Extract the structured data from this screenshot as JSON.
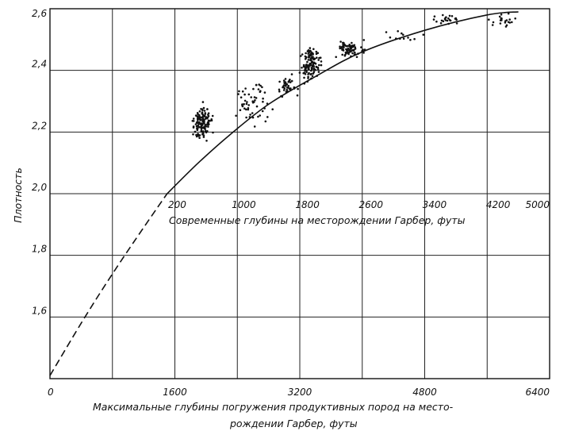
{
  "chart_data": {
    "type": "scatter",
    "ylabel": "Плотность",
    "ylim": [
      1.4,
      2.6
    ],
    "yticks": [
      1.6,
      1.8,
      2.0,
      2.2,
      2.4,
      2.6
    ],
    "ytick_labels": [
      "1,6",
      "1,8",
      "2,0",
      "2,2",
      "2,4",
      "2,6"
    ],
    "bottom_axis": {
      "label_line1": "Максимальные глубины погружения продуктивных пород на место-",
      "label_line2": "рождении Гарбер, футы",
      "range": [
        0,
        6400
      ],
      "ticks": [
        0,
        1600,
        3200,
        4800,
        6400
      ],
      "tick_labels": [
        "0",
        "1600",
        "3200",
        "4800",
        "6400"
      ]
    },
    "top_axis": {
      "label": "Современные глубины на месторождении Гарбер, футы",
      "ticks": [
        200,
        1000,
        1800,
        2600,
        3400,
        4200,
        5000
      ],
      "tick_labels": [
        "200",
        "1000",
        "1800",
        "2600",
        "3400",
        "4200",
        "5000"
      ]
    },
    "grid": true,
    "series": [
      {
        "style": "dashed",
        "x": [
          0,
          400,
          800,
          1200,
          1500
        ],
        "y": [
          1.41,
          1.58,
          1.74,
          1.89,
          2.0
        ]
      },
      {
        "style": "solid",
        "x": [
          1500,
          1900,
          2300,
          2800,
          3400,
          4000,
          4800,
          5600,
          6000
        ],
        "y": [
          2.0,
          2.1,
          2.19,
          2.29,
          2.38,
          2.46,
          2.53,
          2.58,
          2.59
        ]
      }
    ],
    "scatter_clusters": [
      {
        "x_center": 1950,
        "x_spread": 170,
        "y_center": 2.23,
        "y_spread": 0.08,
        "count": 130
      },
      {
        "x_center": 2600,
        "x_spread": 300,
        "y_center": 2.3,
        "y_spread": 0.09,
        "count": 55
      },
      {
        "x_center": 3050,
        "x_spread": 200,
        "y_center": 2.35,
        "y_spread": 0.05,
        "count": 45
      },
      {
        "x_center": 3350,
        "x_spread": 160,
        "y_center": 2.42,
        "y_spread": 0.07,
        "count": 130
      },
      {
        "x_center": 3850,
        "x_spread": 250,
        "y_center": 2.47,
        "y_spread": 0.04,
        "count": 75
      },
      {
        "x_center": 4500,
        "x_spread": 350,
        "y_center": 2.51,
        "y_spread": 0.03,
        "count": 12
      },
      {
        "x_center": 5100,
        "x_spread": 250,
        "y_center": 2.565,
        "y_spread": 0.025,
        "count": 22
      },
      {
        "x_center": 5800,
        "x_spread": 300,
        "y_center": 2.56,
        "y_spread": 0.035,
        "count": 22
      }
    ]
  }
}
